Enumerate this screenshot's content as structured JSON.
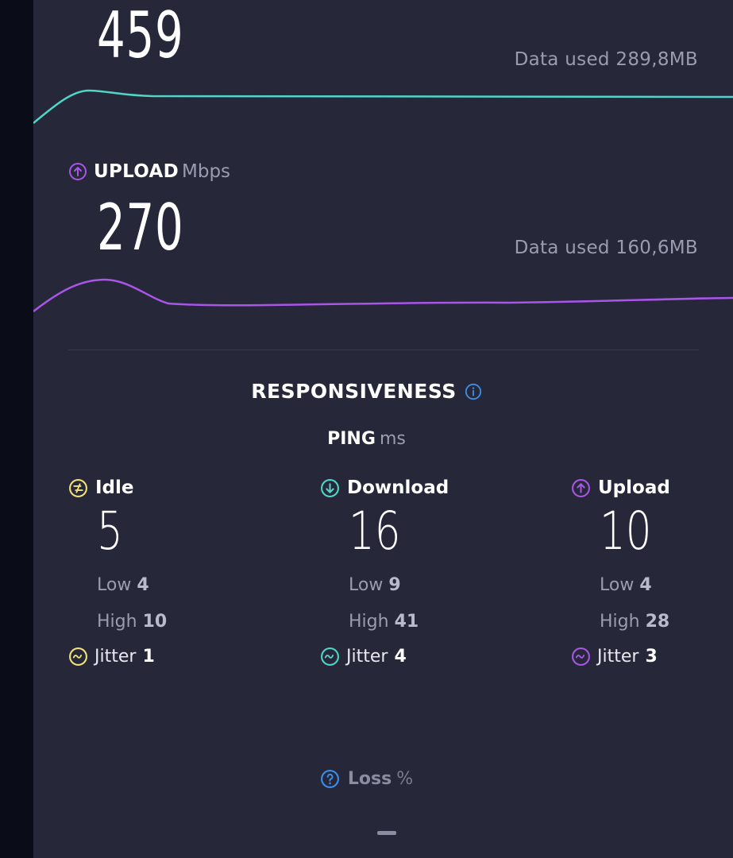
{
  "download": {
    "value": "459",
    "data_used": "Data used 289,8MB",
    "line_color": "#4fd6c8"
  },
  "upload": {
    "label": "UPLOAD",
    "unit": "Mbps",
    "value": "270",
    "data_used": "Data used 160,6MB",
    "line_color": "#a855e8"
  },
  "responsiveness": {
    "title": "RESPONSIVENESS",
    "ping_label": "PING",
    "ping_unit": "ms"
  },
  "ping": [
    {
      "label": "Idle",
      "value": "5",
      "low_label": "Low",
      "low": "4",
      "high_label": "High",
      "high": "10",
      "jitter_label": "Jitter",
      "jitter": "1",
      "color": "#f2e27a"
    },
    {
      "label": "Download",
      "value": "16",
      "low_label": "Low",
      "low": "9",
      "high_label": "High",
      "high": "41",
      "jitter_label": "Jitter",
      "jitter": "4",
      "color": "#4fd6c8"
    },
    {
      "label": "Upload",
      "value": "10",
      "low_label": "Low",
      "low": "4",
      "high_label": "High",
      "high": "28",
      "jitter_label": "Jitter",
      "jitter": "3",
      "color": "#a855e8"
    }
  ],
  "loss": {
    "label": "Loss",
    "unit": "%",
    "value": "—"
  },
  "colors": {
    "info": "#3d8ee8",
    "panel": "#262738"
  },
  "icons": {
    "upload_header": "upload-arrow-circle-icon",
    "info": "info-icon",
    "idle": "idle-circle-icon",
    "download": "download-arrow-circle-icon",
    "upload": "upload-arrow-circle-icon",
    "jitter": "wave-circle-icon",
    "loss": "question-circle-icon"
  }
}
